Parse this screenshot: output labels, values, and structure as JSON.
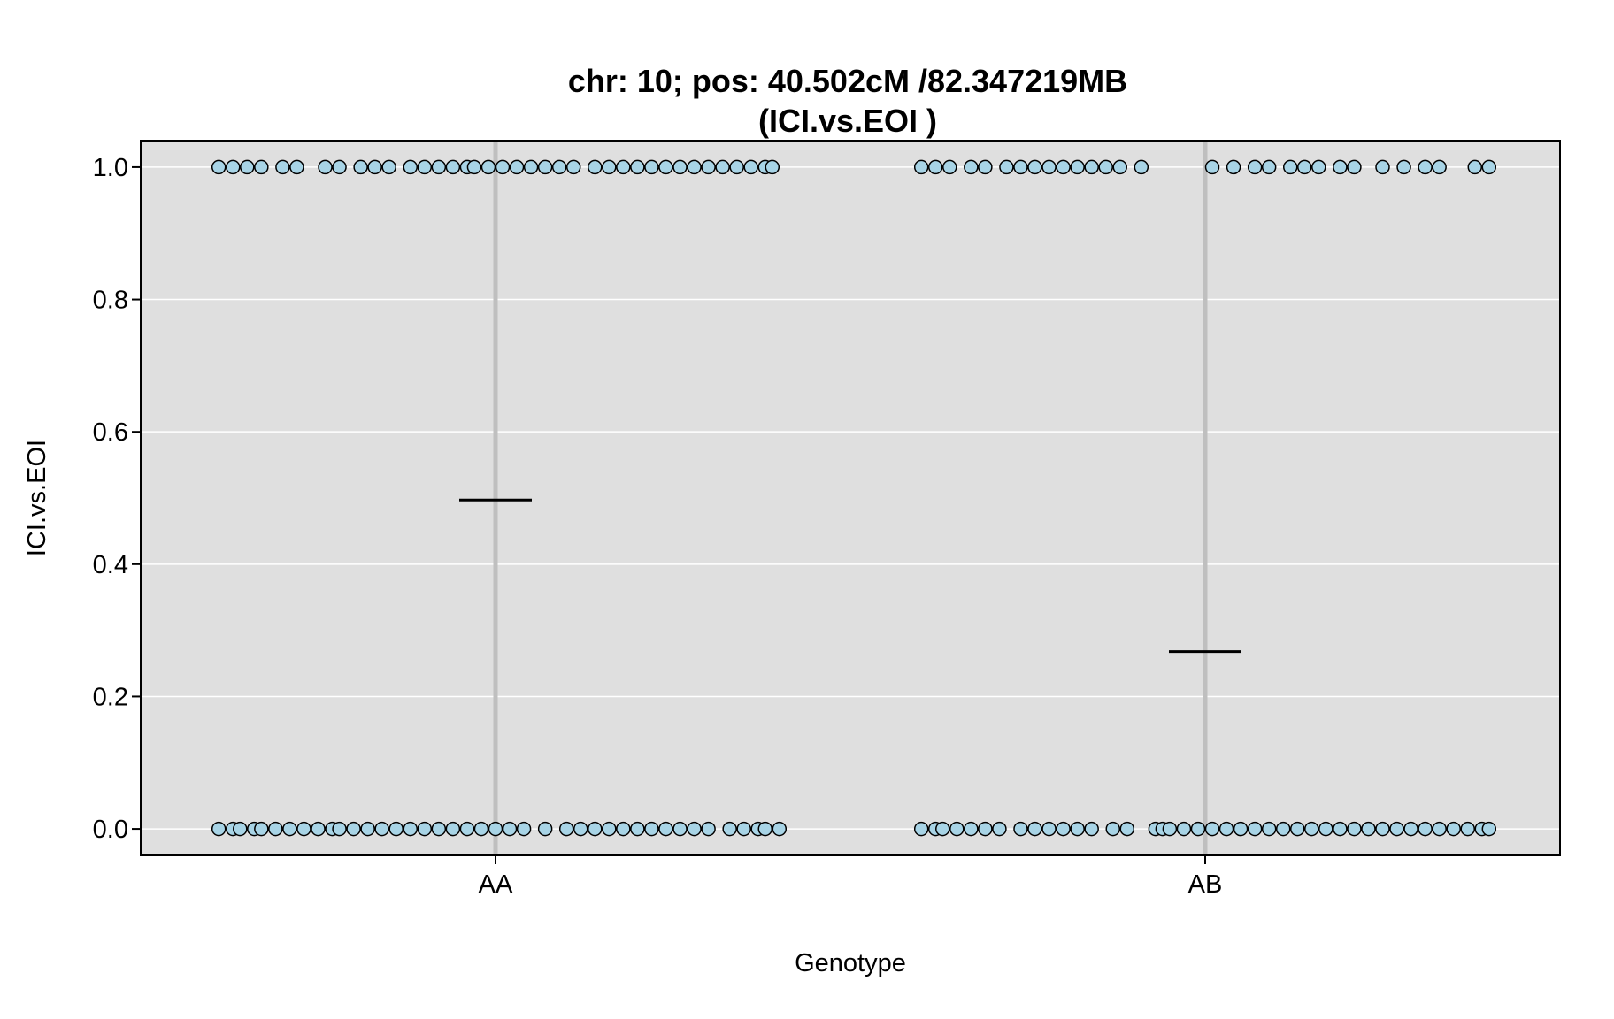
{
  "chart_data": {
    "type": "scatter",
    "title_line1": "chr: 10; pos: 40.502cM /82.347219MB",
    "title_line2": "(ICI.vs.EOI )",
    "xlabel": "Genotype",
    "ylabel": "ICI.vs.EOI",
    "categories": [
      "AA",
      "AB"
    ],
    "ylim": [
      -0.04,
      1.04
    ],
    "yticks": [
      0.0,
      0.2,
      0.4,
      0.6,
      0.8,
      1.0
    ],
    "ytick_labels": [
      "0.0",
      "0.2",
      "0.4",
      "0.6",
      "0.8",
      "1.0"
    ],
    "grid": true,
    "colors": {
      "panel_bg": "#dfdfdf",
      "grid": "#ffffff",
      "category_line": "#bfbfbf",
      "point_fill": "#a8d4e6",
      "point_stroke": "#000000",
      "mean_line": "#000000"
    },
    "means": [
      0.497,
      0.268
    ],
    "points": {
      "AA": {
        "y1": [
          -0.39,
          -0.37,
          -0.35,
          -0.33,
          -0.3,
          -0.28,
          -0.24,
          -0.22,
          -0.19,
          -0.17,
          -0.15,
          -0.12,
          -0.1,
          -0.08,
          -0.06,
          -0.04,
          -0.03,
          -0.01,
          0.01,
          0.03,
          0.05,
          0.07,
          0.09,
          0.11,
          0.14,
          0.16,
          0.18,
          0.2,
          0.22,
          0.24,
          0.26,
          0.28,
          0.3,
          0.32,
          0.34,
          0.36,
          0.38,
          0.39
        ],
        "y0": [
          -0.39,
          -0.37,
          -0.36,
          -0.34,
          -0.33,
          -0.31,
          -0.29,
          -0.27,
          -0.25,
          -0.23,
          -0.22,
          -0.2,
          -0.18,
          -0.16,
          -0.14,
          -0.12,
          -0.1,
          -0.08,
          -0.06,
          -0.04,
          -0.02,
          0.0,
          0.02,
          0.04,
          0.07,
          0.1,
          0.12,
          0.14,
          0.16,
          0.18,
          0.2,
          0.22,
          0.24,
          0.26,
          0.28,
          0.3,
          0.33,
          0.35,
          0.37,
          0.38,
          0.4
        ]
      },
      "AB": {
        "y1": [
          -0.4,
          -0.38,
          -0.36,
          -0.33,
          -0.31,
          -0.28,
          -0.26,
          -0.24,
          -0.22,
          -0.2,
          -0.18,
          -0.16,
          -0.14,
          -0.12,
          -0.09,
          0.01,
          0.04,
          0.07,
          0.09,
          0.12,
          0.14,
          0.16,
          0.19,
          0.21,
          0.25,
          0.28,
          0.31,
          0.33,
          0.38,
          0.4
        ],
        "y0": [
          -0.4,
          -0.38,
          -0.37,
          -0.35,
          -0.33,
          -0.31,
          -0.29,
          -0.26,
          -0.24,
          -0.22,
          -0.2,
          -0.18,
          -0.16,
          -0.13,
          -0.11,
          -0.07,
          -0.06,
          -0.05,
          -0.03,
          -0.01,
          0.01,
          0.03,
          0.05,
          0.07,
          0.09,
          0.11,
          0.13,
          0.15,
          0.17,
          0.19,
          0.21,
          0.23,
          0.25,
          0.27,
          0.29,
          0.31,
          0.33,
          0.35,
          0.37,
          0.39,
          0.4
        ]
      }
    }
  }
}
